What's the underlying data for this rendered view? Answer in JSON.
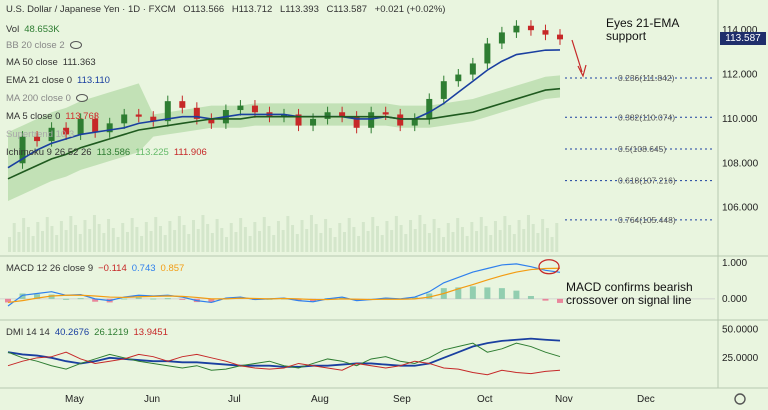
{
  "header": {
    "symbol": "U.S. Dollar / Japanese Yen · 1D · FXCM",
    "o": "O113.566",
    "h": "H113.712",
    "l": "L113.393",
    "c": "C113.587",
    "chg": "+0.021 (+0.02%)",
    "vol_label": "Vol",
    "vol_value": "48.653K",
    "bb": "BB 20 close 2",
    "ma50_label": "MA 50 close",
    "ma50_value": "111.363",
    "ema21_label": "EMA 21 close 0",
    "ema21_value": "113.110",
    "ma200_label": "MA 200 close 0",
    "ma5_label": "MA 5 close 0",
    "ma5_value": "113.763",
    "supertrend": "Supertrend 10 3",
    "ichimoku_label": "Ichimoku 9 26 52 26",
    "ichi1": "113.586",
    "ichi2": "113.225",
    "ichi3": "111.906"
  },
  "macd_header": {
    "label": "MACD 12 26 close 9",
    "v1": "−0.114",
    "v2": "0.743",
    "v3": "0.857"
  },
  "dmi_header": {
    "label": "DMI 14 14",
    "v1": "40.2676",
    "v2": "26.1219",
    "v3": "13.9451"
  },
  "annotations": {
    "ema": "Eyes 21-EMA\nsupport",
    "macd": "MACD confirms bearish\ncrossover on signal line"
  },
  "fib_levels": [
    {
      "label": "0.236(111.842)",
      "price": 111.842
    },
    {
      "label": "0.382(110.074)",
      "price": 110.074
    },
    {
      "label": "0.5(108.645)",
      "price": 108.645
    },
    {
      "label": "0.618(107.216)",
      "price": 107.216
    },
    {
      "label": "0.764(105.448)",
      "price": 105.448
    }
  ],
  "last_price": "113.587",
  "colors": {
    "bg": "#e9f5df",
    "up": "#2e7d32",
    "down": "#c62828",
    "ema": "#1a3fa0",
    "ma50": "#1f5a1f",
    "ma5": "#d32f2f",
    "macd": "#2f80ed",
    "signal": "#f39c12",
    "price_tag": "#1f2e6b"
  },
  "chart_data": {
    "type": "line",
    "x_ticks": [
      "May",
      "Jun",
      "Jul",
      "Aug",
      "Sep",
      "Oct",
      "Nov",
      "Dec"
    ],
    "y_ticks": [
      "114.000",
      "112.000",
      "110.000",
      "108.000",
      "106.000"
    ],
    "macd_ticks": [
      "1.000",
      "0.000"
    ],
    "dmi_ticks": [
      "50.0000",
      "25.0000"
    ],
    "series": [
      {
        "name": "Close",
        "values": [
          108.0,
          109.2,
          109.0,
          109.6,
          109.3,
          110.0,
          109.4,
          109.8,
          110.2,
          110.1,
          109.9,
          110.8,
          110.5,
          110.0,
          109.8,
          110.4,
          110.6,
          110.3,
          110.1,
          110.2,
          109.7,
          110.0,
          110.3,
          110.1,
          109.6,
          110.3,
          110.2,
          109.7,
          110.0,
          110.9,
          111.7,
          112.0,
          112.5,
          113.4,
          113.9,
          114.2,
          114.0,
          113.8,
          113.587
        ]
      },
      {
        "name": "EMA 21",
        "values": [
          107.8,
          108.2,
          108.6,
          108.9,
          109.1,
          109.3,
          109.4,
          109.5,
          109.6,
          109.8,
          109.9,
          110.0,
          110.1,
          110.1,
          110.0,
          110.1,
          110.2,
          110.2,
          110.2,
          110.2,
          110.1,
          110.1,
          110.1,
          110.1,
          110.0,
          110.0,
          110.1,
          110.0,
          110.0,
          110.3,
          110.7,
          111.2,
          111.7,
          112.2,
          112.6,
          112.9,
          113.0,
          113.1,
          113.11
        ]
      },
      {
        "name": "MA 50",
        "values": [
          107.3,
          107.6,
          107.9,
          108.2,
          108.4,
          108.7,
          108.9,
          109.1,
          109.3,
          109.5,
          109.6,
          109.7,
          109.8,
          109.9,
          110.0,
          110.0,
          110.0,
          110.1,
          110.1,
          110.1,
          110.1,
          110.1,
          110.1,
          110.1,
          110.1,
          110.1,
          110.1,
          110.0,
          110.0,
          110.0,
          110.1,
          110.2,
          110.3,
          110.5,
          110.7,
          110.9,
          111.1,
          111.3,
          111.363
        ]
      }
    ],
    "macd": {
      "macd": [
        -0.2,
        0.1,
        0.15,
        0.2,
        0.1,
        0.12,
        0.0,
        -0.05,
        0.05,
        0.1,
        0.08,
        0.1,
        0.05,
        -0.05,
        -0.1,
        0.02,
        0.05,
        -0.02,
        0.0,
        0.02,
        -0.05,
        -0.08,
        0.0,
        0.05,
        -0.05,
        -0.02,
        0.02,
        0.0,
        0.05,
        0.2,
        0.45,
        0.6,
        0.75,
        0.85,
        0.95,
        0.98,
        0.9,
        0.8,
        0.743
      ],
      "signal": [
        -0.1,
        -0.05,
        0.02,
        0.08,
        0.1,
        0.1,
        0.08,
        0.05,
        0.04,
        0.06,
        0.07,
        0.08,
        0.07,
        0.04,
        0.0,
        0.0,
        0.02,
        0.01,
        0.0,
        0.01,
        0.0,
        -0.02,
        -0.02,
        0.0,
        -0.01,
        -0.02,
        -0.01,
        -0.01,
        0.0,
        0.05,
        0.15,
        0.28,
        0.4,
        0.53,
        0.65,
        0.75,
        0.82,
        0.85,
        0.857
      ]
    },
    "dmi": {
      "adx": [
        30,
        28,
        27,
        25,
        22,
        20,
        22,
        25,
        24,
        23,
        22,
        22,
        21,
        21,
        20,
        19,
        18,
        18,
        18,
        17,
        17,
        18,
        18,
        19,
        20,
        20,
        19,
        18,
        18,
        20,
        25,
        30,
        35,
        38,
        40,
        41,
        42,
        41,
        40.2676
      ],
      "plus": [
        30,
        25,
        22,
        18,
        15,
        20,
        24,
        28,
        25,
        22,
        20,
        18,
        16,
        18,
        14,
        15,
        18,
        20,
        22,
        18,
        16,
        20,
        24,
        22,
        18,
        24,
        26,
        22,
        20,
        25,
        32,
        35,
        38,
        30,
        33,
        38,
        35,
        30,
        26.1219
      ],
      "minus": [
        18,
        22,
        25,
        26,
        30,
        24,
        20,
        22,
        24,
        28,
        26,
        22,
        26,
        28,
        25,
        22,
        18,
        16,
        15,
        16,
        20,
        18,
        16,
        14,
        20,
        18,
        16,
        18,
        22,
        20,
        16,
        15,
        12,
        10,
        14,
        12,
        11,
        13,
        13.9451
      ]
    }
  }
}
